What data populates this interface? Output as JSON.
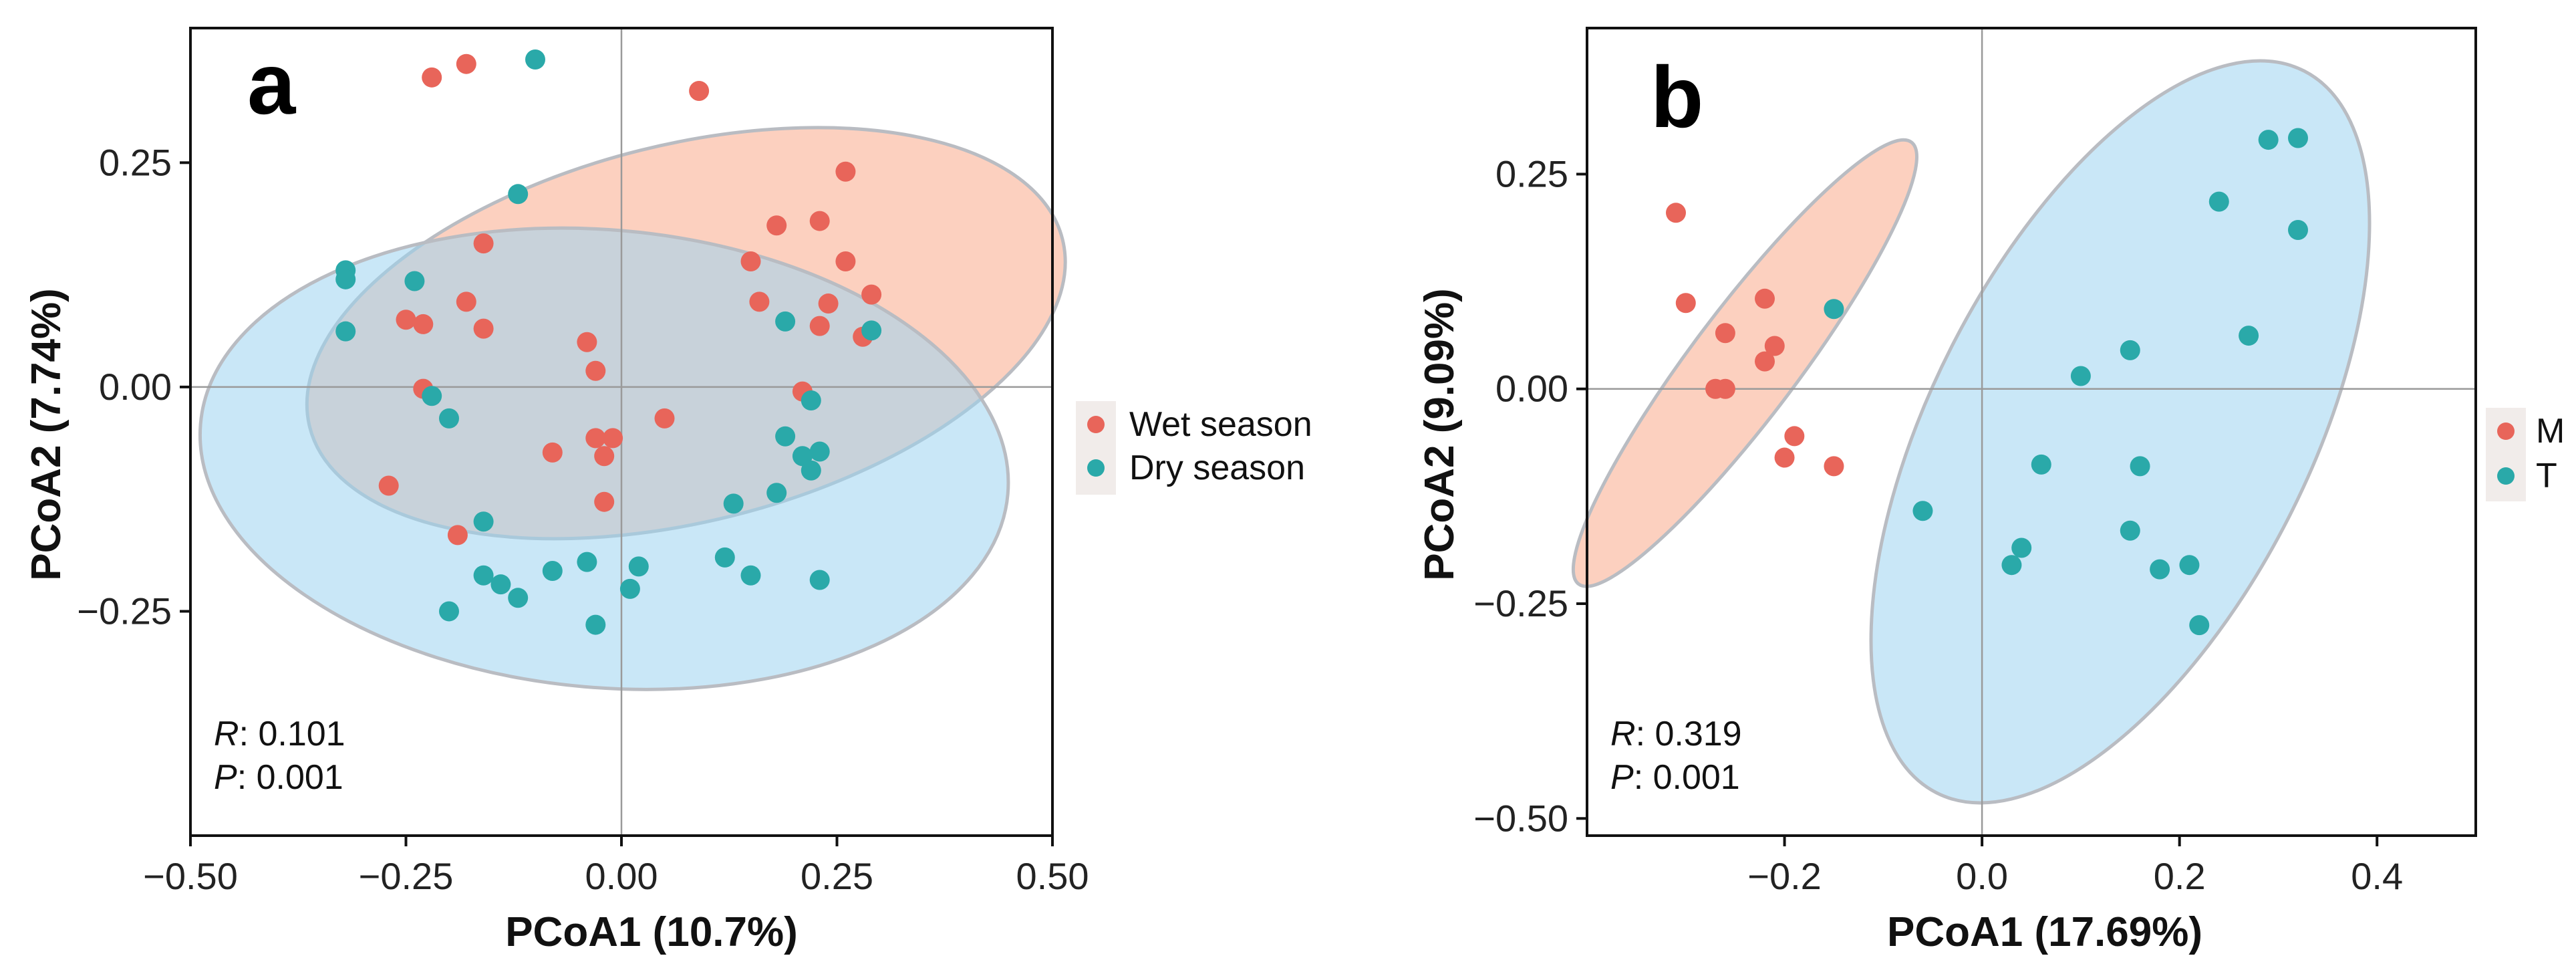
{
  "chart_data": [
    {
      "panel": "a",
      "type": "scatter",
      "xlabel": "PCoA1 (10.7%)",
      "ylabel": "PCoA2 (7.74%)",
      "xlim": [
        -0.5,
        0.5
      ],
      "ylim": [
        -0.5,
        0.4
      ],
      "xticks": [
        -0.5,
        -0.25,
        0,
        0.25,
        0.5
      ],
      "xtick_labels": [
        "−0.50",
        "−0.25",
        "0.00",
        "0.25",
        "0.50"
      ],
      "yticks": [
        -0.25,
        0,
        0.25
      ],
      "ytick_labels": [
        "−0.25",
        "0.00",
        "0.25"
      ],
      "stats": {
        "r_label": "R",
        "r_value": ": 0.101",
        "p_label": "P",
        "p_value": ": 0.001"
      },
      "legend": [
        {
          "name": "Wet season",
          "color": "#e8655a"
        },
        {
          "name": "Dry season",
          "color": "#2aa9a9"
        }
      ],
      "ellipses": [
        {
          "series": "Wet season",
          "cx": 0.075,
          "cy": 0.06,
          "rx": 0.45,
          "ry": 0.21,
          "angle_deg": 14,
          "fill": "#f9a98a"
        },
        {
          "series": "Dry season",
          "cx": -0.02,
          "cy": -0.08,
          "rx": 0.47,
          "ry": 0.255,
          "angle_deg": -5,
          "fill": "#9dd3f0"
        }
      ],
      "series": [
        {
          "name": "Wet season",
          "color": "#e8655a",
          "points": [
            [
              -0.22,
              0.345
            ],
            [
              -0.18,
              0.36
            ],
            [
              0.09,
              0.33
            ],
            [
              0.26,
              0.24
            ],
            [
              0.23,
              0.185
            ],
            [
              0.18,
              0.18
            ],
            [
              0.26,
              0.14
            ],
            [
              0.15,
              0.14
            ],
            [
              -0.16,
              0.16
            ],
            [
              -0.18,
              0.095
            ],
            [
              0.16,
              0.095
            ],
            [
              0.24,
              0.093
            ],
            [
              0.29,
              0.103
            ],
            [
              -0.25,
              0.075
            ],
            [
              -0.23,
              0.07
            ],
            [
              -0.16,
              0.065
            ],
            [
              0.23,
              0.068
            ],
            [
              0.28,
              0.056
            ],
            [
              -0.04,
              0.05
            ],
            [
              -0.03,
              0.018
            ],
            [
              -0.23,
              -0.002
            ],
            [
              0.21,
              -0.005
            ],
            [
              0.05,
              -0.035
            ],
            [
              -0.03,
              -0.057
            ],
            [
              -0.01,
              -0.057
            ],
            [
              -0.08,
              -0.073
            ],
            [
              -0.02,
              -0.077
            ],
            [
              -0.27,
              -0.11
            ],
            [
              -0.02,
              -0.128
            ],
            [
              -0.19,
              -0.165
            ]
          ]
        },
        {
          "name": "Dry season",
          "color": "#2aa9a9",
          "points": [
            [
              -0.1,
              0.365
            ],
            [
              -0.12,
              0.215
            ],
            [
              -0.32,
              0.13
            ],
            [
              -0.32,
              0.12
            ],
            [
              -0.24,
              0.118
            ],
            [
              0.19,
              0.073
            ],
            [
              0.29,
              0.063
            ],
            [
              -0.32,
              0.062
            ],
            [
              0.22,
              -0.015
            ],
            [
              -0.22,
              -0.01
            ],
            [
              -0.2,
              -0.035
            ],
            [
              0.19,
              -0.055
            ],
            [
              0.23,
              -0.072
            ],
            [
              0.21,
              -0.077
            ],
            [
              0.22,
              -0.093
            ],
            [
              0.18,
              -0.118
            ],
            [
              0.13,
              -0.13
            ],
            [
              -0.16,
              -0.15
            ],
            [
              0.12,
              -0.19
            ],
            [
              -0.04,
              -0.195
            ],
            [
              0.02,
              -0.2
            ],
            [
              -0.08,
              -0.205
            ],
            [
              -0.16,
              -0.21
            ],
            [
              0.15,
              -0.21
            ],
            [
              -0.14,
              -0.22
            ],
            [
              0.23,
              -0.215
            ],
            [
              0.01,
              -0.225
            ],
            [
              -0.12,
              -0.235
            ],
            [
              -0.2,
              -0.25
            ],
            [
              -0.03,
              -0.265
            ]
          ]
        }
      ]
    },
    {
      "panel": "b",
      "type": "scatter",
      "xlabel": "PCoA1 (17.69%)",
      "ylabel": "PCoA2 (9.09%)",
      "xlim": [
        -0.4,
        0.5
      ],
      "ylim": [
        -0.52,
        0.42
      ],
      "xticks": [
        -0.2,
        0,
        0.2,
        0.4
      ],
      "xtick_labels": [
        "−0.2",
        "0.0",
        "0.2",
        "0.4"
      ],
      "yticks": [
        -0.5,
        -0.25,
        0,
        0.25
      ],
      "ytick_labels": [
        "−0.50",
        "−0.25",
        "0.00",
        "0.25"
      ],
      "stats": {
        "r_label": "R",
        "r_value": ": 0.319",
        "p_label": "P",
        "p_value": ": 0.001"
      },
      "legend": [
        {
          "name": "M",
          "color": "#e8655a"
        },
        {
          "name": "T",
          "color": "#2aa9a9"
        }
      ],
      "ellipses": [
        {
          "series": "M",
          "cx": -0.24,
          "cy": 0.03,
          "rx": 0.28,
          "ry": 0.062,
          "angle_deg": 53,
          "fill": "#f9a98a"
        },
        {
          "series": "T",
          "cx": 0.14,
          "cy": -0.05,
          "rx": 0.41,
          "ry": 0.22,
          "angle_deg": 63,
          "fill": "#9dd3f0"
        }
      ],
      "series": [
        {
          "name": "M",
          "color": "#e8655a",
          "points": [
            [
              -0.31,
              0.205
            ],
            [
              -0.3,
              0.1
            ],
            [
              -0.22,
              0.105
            ],
            [
              -0.26,
              0.065
            ],
            [
              -0.21,
              0.05
            ],
            [
              -0.22,
              0.032
            ],
            [
              -0.27,
              0.0
            ],
            [
              -0.26,
              0.0
            ],
            [
              -0.19,
              -0.055
            ],
            [
              -0.2,
              -0.08
            ],
            [
              -0.15,
              -0.09
            ]
          ]
        },
        {
          "name": "T",
          "color": "#2aa9a9",
          "points": [
            [
              -0.15,
              0.093
            ],
            [
              0.29,
              0.29
            ],
            [
              0.32,
              0.292
            ],
            [
              0.24,
              0.218
            ],
            [
              0.32,
              0.185
            ],
            [
              0.27,
              0.062
            ],
            [
              0.15,
              0.045
            ],
            [
              0.1,
              0.015
            ],
            [
              0.06,
              -0.088
            ],
            [
              0.16,
              -0.09
            ],
            [
              -0.06,
              -0.142
            ],
            [
              0.15,
              -0.165
            ],
            [
              0.04,
              -0.185
            ],
            [
              0.03,
              -0.205
            ],
            [
              0.21,
              -0.205
            ],
            [
              0.18,
              -0.21
            ],
            [
              0.22,
              -0.275
            ]
          ]
        }
      ]
    }
  ]
}
